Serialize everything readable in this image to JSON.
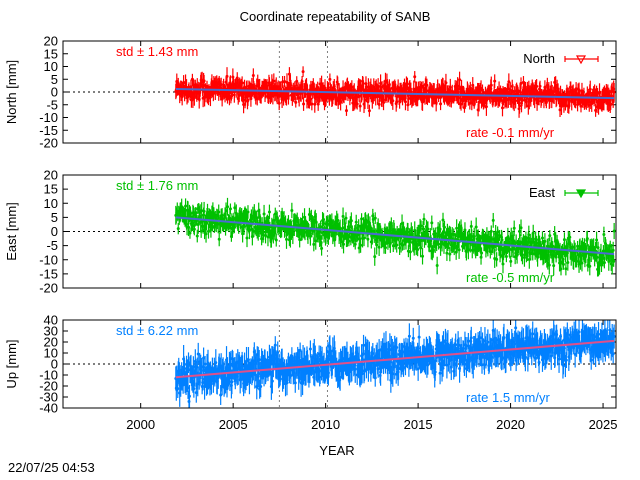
{
  "title": "Coordinate repeatability of SANB",
  "timestamp": "22/07/25 04:53",
  "xlabel": "YEAR",
  "x_ticks": [
    2000,
    2005,
    2010,
    2015,
    2020,
    2025
  ],
  "xlim": [
    1995.8,
    2025.7
  ],
  "reference_lines": [
    2007.5,
    2010.1
  ],
  "colors": {
    "north": "#ff0000",
    "east": "#00c000",
    "up": "#0080ff",
    "trend": "#4b6bd0",
    "up_trend": "#e0508a"
  },
  "chart_data": [
    {
      "type": "line",
      "component": "north",
      "ylabel": "North [mm]",
      "ylim": [
        -20,
        20
      ],
      "y_ticks": [
        -20,
        -15,
        -10,
        -5,
        0,
        5,
        10,
        15,
        20
      ],
      "legend": "North",
      "legend_position": "top-right",
      "std_label": "std ± 1.43 mm",
      "rate_label": "rate -0.1 mm/yr",
      "data_start": 2001.9,
      "data_end": 2025.6,
      "trend": {
        "x": [
          2001.9,
          2025.6
        ],
        "y": [
          1.2,
          -2.4
        ]
      },
      "scatter_sd": 2.2,
      "error_bar": 2.8
    },
    {
      "type": "line",
      "component": "east",
      "ylabel": "East [mm]",
      "ylim": [
        -20,
        20
      ],
      "y_ticks": [
        -20,
        -15,
        -10,
        -5,
        0,
        5,
        10,
        15,
        20
      ],
      "legend": "East",
      "legend_position": "top-right",
      "std_label": "std ± 1.76 mm",
      "rate_label": "rate -0.5 mm/yr",
      "data_start": 2001.9,
      "data_end": 2025.6,
      "trend": {
        "x": [
          2001.9,
          2025.6
        ],
        "y": [
          5.0,
          -8.0
        ]
      },
      "scatter_sd": 2.5,
      "error_bar": 2.6
    },
    {
      "type": "line",
      "component": "up",
      "ylabel": "Up [mm]",
      "ylim": [
        -40,
        40
      ],
      "y_ticks": [
        -40,
        -30,
        -20,
        -10,
        0,
        10,
        20,
        30,
        40
      ],
      "legend": "",
      "std_label": "std ± 6.22 mm",
      "rate_label": "rate  1.5 mm/yr",
      "data_start": 2001.9,
      "data_end": 2025.6,
      "trend": {
        "x": [
          2001.9,
          2025.6
        ],
        "y": [
          -12.0,
          21.0
        ]
      },
      "scatter_sd": 7.0,
      "error_bar": 10
    }
  ]
}
